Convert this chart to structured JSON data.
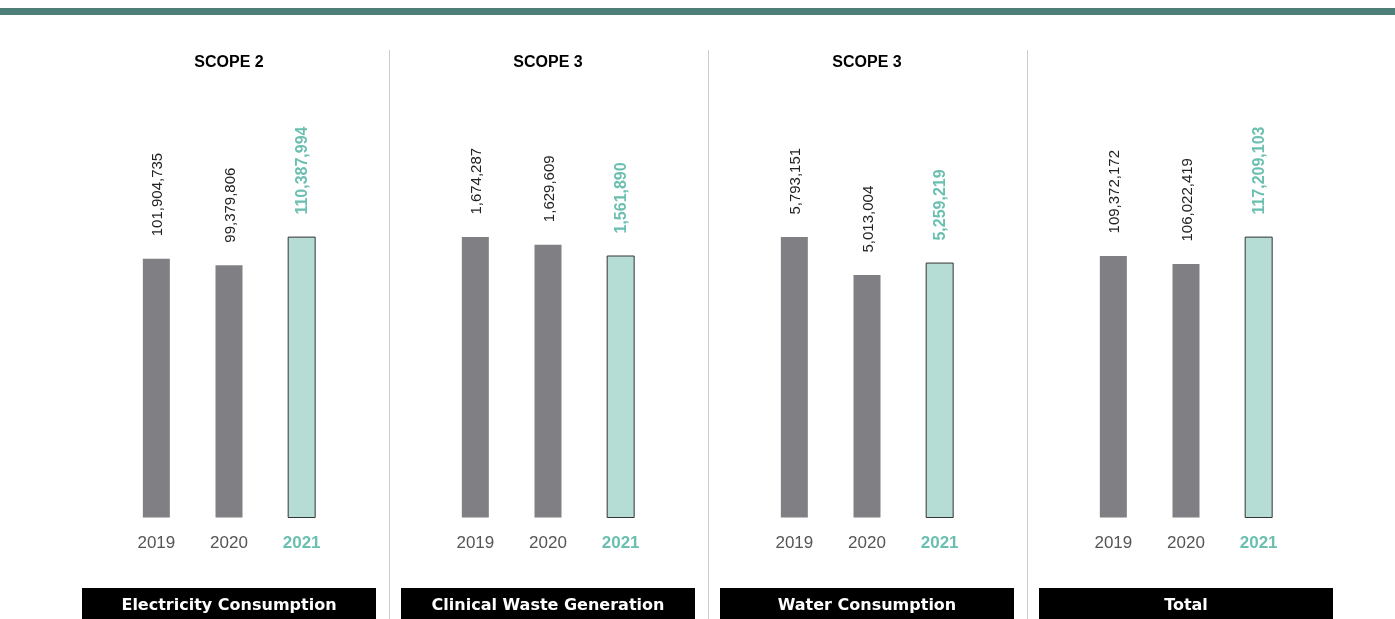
{
  "chart_data": [
    {
      "type": "bar",
      "title": "SCOPE 2",
      "xlabel": "Electricity Consumption",
      "categories": [
        "2019",
        "2020",
        "2021"
      ],
      "values": [
        101904735,
        99379806,
        110387994
      ],
      "value_labels": [
        "101,904,735",
        "99,379,806",
        "110,387,994"
      ],
      "colors": [
        "#808084",
        "#808084",
        "#b5dcd5"
      ]
    },
    {
      "type": "bar",
      "title": "SCOPE 3",
      "xlabel": "Clinical Waste Generation",
      "categories": [
        "2019",
        "2020",
        "2021"
      ],
      "values": [
        1674287,
        1629609,
        1561890
      ],
      "value_labels": [
        "1,674,287",
        "1,629,609",
        "1,561,890"
      ],
      "colors": [
        "#808084",
        "#808084",
        "#b5dcd5"
      ]
    },
    {
      "type": "bar",
      "title": "SCOPE 3",
      "xlabel": "Water Consumption",
      "categories": [
        "2019",
        "2020",
        "2021"
      ],
      "values": [
        5793151,
        5013004,
        5259219
      ],
      "value_labels": [
        "5,793,151",
        "5,013,004",
        "5,259,219"
      ],
      "colors": [
        "#808084",
        "#808084",
        "#b5dcd5"
      ]
    },
    {
      "type": "bar",
      "xlabel": "Total",
      "categories": [
        "2019",
        "2020",
        "2021"
      ],
      "values": [
        109372172,
        106022419,
        117209103
      ],
      "value_labels": [
        "109,372,172",
        "106,022,419",
        "117,209,103"
      ],
      "colors": [
        "#808084",
        "#808084",
        "#b5dcd5"
      ]
    }
  ]
}
